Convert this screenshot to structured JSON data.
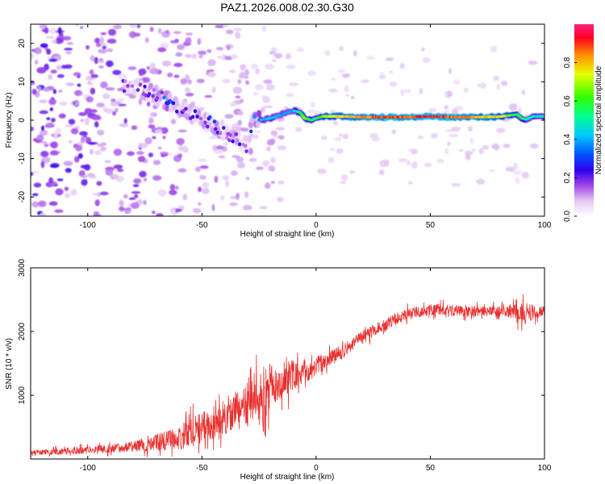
{
  "figure_title": "PAZ1.2026.008.02.30.G30",
  "colors": {
    "snr_line": "#e8312f",
    "axis": "#000000",
    "colormap": [
      "#f8f0fc",
      "#d7b8f3",
      "#9b4dea",
      "#6a00e8",
      "#0000ff",
      "#00a0ff",
      "#00f0c0",
      "#00ff40",
      "#d0ff00",
      "#ffa000",
      "#ff0000",
      "#ff0060"
    ]
  },
  "chart_data": [
    {
      "type": "heatmap",
      "title": "PAZ1.2026.008.02.30.G30",
      "xlabel": "Height of straight line (km)",
      "ylabel": "Frequency (Hz)",
      "xlim": [
        -125,
        100
      ],
      "ylim": [
        -25,
        25
      ],
      "xticks": [
        -100,
        -50,
        0,
        50,
        100
      ],
      "yticks": [
        -20,
        -10,
        0,
        10,
        20
      ],
      "xtick_labels": [
        "-100",
        "-50",
        "0",
        "50",
        "100"
      ],
      "ytick_labels": [
        "-20",
        "-10",
        "0",
        "10",
        "20"
      ],
      "colorbar": {
        "label": "Normalized spectral amplitude",
        "range": [
          0,
          1
        ],
        "ticks": [
          0.0,
          0.2,
          0.4,
          0.6,
          0.8
        ],
        "tick_labels": [
          "0.0",
          "0.2",
          "0.4",
          "0.6",
          "0.8"
        ]
      },
      "ridge": {
        "x": [
          -85,
          -80,
          -75,
          -70,
          -65,
          -60,
          -55,
          -50,
          -45,
          -40,
          -35,
          -30,
          -28,
          -25,
          -20,
          -15,
          -10,
          -7,
          -5,
          -2,
          0,
          3,
          10,
          20,
          30,
          40,
          50,
          60,
          70,
          80,
          88,
          90,
          92,
          95,
          100
        ],
        "frequency": [
          9,
          8.5,
          7.5,
          6.5,
          5,
          3,
          1.5,
          0,
          -1,
          -3,
          -5,
          -7,
          0,
          0,
          0.5,
          1.5,
          2.5,
          2,
          0.5,
          0,
          0.5,
          1,
          1,
          0.8,
          0.8,
          0.8,
          1,
          0.8,
          0.8,
          0.9,
          1.5,
          0.5,
          0.2,
          1,
          1
        ],
        "amplitude": [
          0.15,
          0.2,
          0.2,
          0.22,
          0.3,
          0.2,
          0.2,
          0.2,
          0.25,
          0.2,
          0.2,
          0.15,
          0.3,
          0.4,
          0.45,
          0.4,
          0.4,
          0.6,
          0.7,
          0.6,
          0.5,
          0.7,
          0.8,
          0.85,
          0.95,
          0.9,
          0.95,
          0.9,
          0.85,
          0.8,
          0.6,
          0.6,
          0.5,
          0.5,
          0.5
        ]
      },
      "noise_region_x": [
        -125,
        -25
      ]
    },
    {
      "type": "line",
      "xlabel": "Height of straight line (km)",
      "ylabel": "SNR (10 * v/v)",
      "xlim": [
        -125,
        100
      ],
      "ylim": [
        0,
        3000
      ],
      "xticks": [
        -100,
        -50,
        0,
        50,
        100
      ],
      "yticks": [
        1000,
        2000,
        3000
      ],
      "xtick_labels": [
        "-100",
        "-50",
        "0",
        "50",
        "100"
      ],
      "ytick_labels": [
        "1000",
        "2000",
        "3000"
      ],
      "series": [
        {
          "name": "SNR",
          "x": [
            -125,
            -110,
            -100,
            -90,
            -80,
            -70,
            -60,
            -55,
            -50,
            -45,
            -40,
            -35,
            -30,
            -25,
            -22,
            -20,
            -15,
            -10,
            -5,
            0,
            5,
            10,
            15,
            20,
            25,
            30,
            35,
            40,
            45,
            50,
            55,
            60,
            70,
            80,
            85,
            88,
            90,
            92,
            95,
            100
          ],
          "values": [
            100,
            120,
            140,
            160,
            200,
            260,
            320,
            420,
            500,
            550,
            620,
            720,
            900,
            1000,
            750,
            1150,
            1250,
            1320,
            1380,
            1450,
            1550,
            1650,
            1780,
            1900,
            2020,
            2100,
            2200,
            2270,
            2310,
            2340,
            2350,
            2330,
            2320,
            2310,
            2320,
            2350,
            2200,
            2320,
            2300,
            2320
          ],
          "noise_amplitude": [
            50,
            60,
            70,
            80,
            100,
            160,
            220,
            300,
            300,
            280,
            300,
            380,
            500,
            550,
            600,
            400,
            350,
            300,
            250,
            200,
            150,
            150,
            130,
            130,
            120,
            120,
            120,
            110,
            110,
            110,
            110,
            110,
            100,
            100,
            120,
            300,
            300,
            200,
            150,
            100
          ]
        }
      ]
    }
  ]
}
